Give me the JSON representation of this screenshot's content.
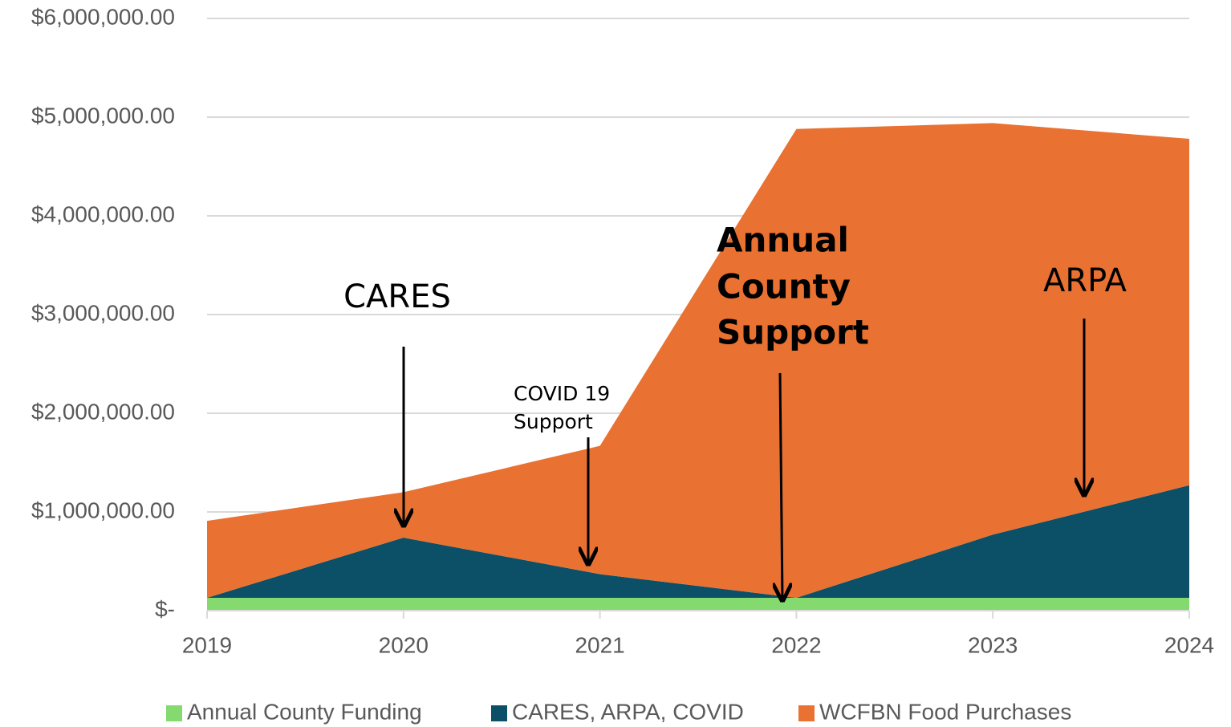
{
  "chart_data": {
    "type": "stacked_area",
    "categories": [
      "2019",
      "2020",
      "2021",
      "2022",
      "2023",
      "2024"
    ],
    "series": [
      {
        "name": "Annual County Funding",
        "color": "#84d96f",
        "values": [
          130000,
          130000,
          130000,
          130000,
          130000,
          130000
        ]
      },
      {
        "name": "CARES, ARPA, COVID",
        "color": "#0b5066",
        "values": [
          0,
          610000,
          240000,
          0,
          640000,
          1140000
        ]
      },
      {
        "name": "WCFBN Food Purchases",
        "color": "#e97132",
        "values": [
          780000,
          460000,
          1300000,
          4750000,
          4170000,
          3510000
        ]
      }
    ],
    "ylim": [
      0,
      6000000
    ],
    "yticks": [
      {
        "value": 0,
        "label": "$-"
      },
      {
        "value": 1000000,
        "label": "$1,000,000.00"
      },
      {
        "value": 2000000,
        "label": "$2,000,000.00"
      },
      {
        "value": 3000000,
        "label": "$3,000,000.00"
      },
      {
        "value": 4000000,
        "label": "$4,000,000.00"
      },
      {
        "value": 5000000,
        "label": "$5,000,000.00"
      },
      {
        "value": 6000000,
        "label": "$6,000,000.00"
      }
    ],
    "grid": true,
    "legend": "bottom",
    "annotations": [
      {
        "lines": [
          "CARES"
        ]
      },
      {
        "lines": [
          "COVID 19",
          "Support"
        ]
      },
      {
        "lines": [
          "Annual",
          "County",
          "Support"
        ]
      },
      {
        "lines": [
          "ARPA"
        ]
      }
    ]
  }
}
